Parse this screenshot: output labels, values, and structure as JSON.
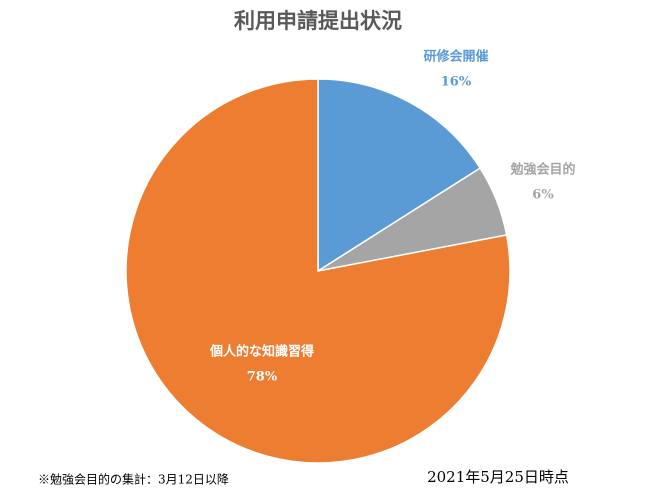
{
  "chart_data": {
    "type": "pie",
    "title": "利用申請提出状況",
    "categories": [
      "研修会開催",
      "勉強会目的",
      "個人的な知識習得"
    ],
    "values": [
      16,
      6,
      78
    ],
    "value_labels": [
      "16%",
      "6%",
      "78%"
    ],
    "colors": [
      "#5b9bd5",
      "#a5a5a5",
      "#ed7d31"
    ],
    "annotations": [
      "※勉強会目的の集計：3月12日以降",
      "2021年5月25日時点"
    ]
  }
}
